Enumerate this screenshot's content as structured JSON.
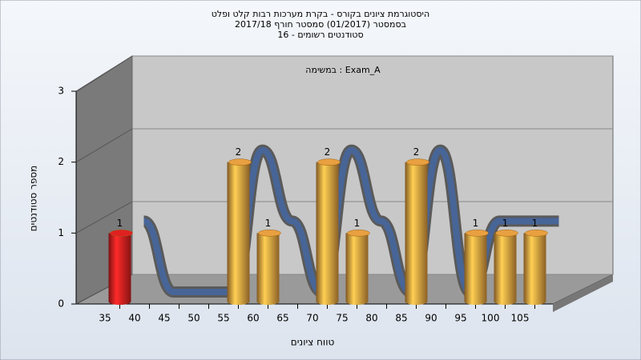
{
  "chart_data": {
    "type": "bar",
    "title": [
      "היסטוגרמת ציונים בקורס - בקרת מערכות רבות קלט ופלט",
      "בסמסטר  (01/2017)  סמסטר חורף 2017/18",
      "סטודנטים רשומים - 16"
    ],
    "subtitle": "במשימה : Exam_A",
    "x_label": "טווח ציונים",
    "y_label": "מספר סטודנטים",
    "categories": [
      "35",
      "40",
      "45",
      "50",
      "55",
      "60",
      "65",
      "70",
      "75",
      "80",
      "85",
      "90",
      "95",
      "100",
      "105"
    ],
    "values": [
      1,
      0,
      0,
      0,
      2,
      1,
      0,
      2,
      1,
      0,
      2,
      0,
      1,
      1,
      1
    ],
    "colors": [
      "#e02020",
      "#e8a040",
      "#e8a040",
      "#e8a040",
      "#e8a040",
      "#e8a040",
      "#e8a040",
      "#e8a040",
      "#e8a040",
      "#e8a040",
      "#e8a040",
      "#e8a040",
      "#e8a040",
      "#e8a040",
      "#e8a040"
    ],
    "ylim": [
      0,
      3
    ],
    "yticks": [
      0,
      1,
      2,
      3
    ],
    "grid": true
  }
}
